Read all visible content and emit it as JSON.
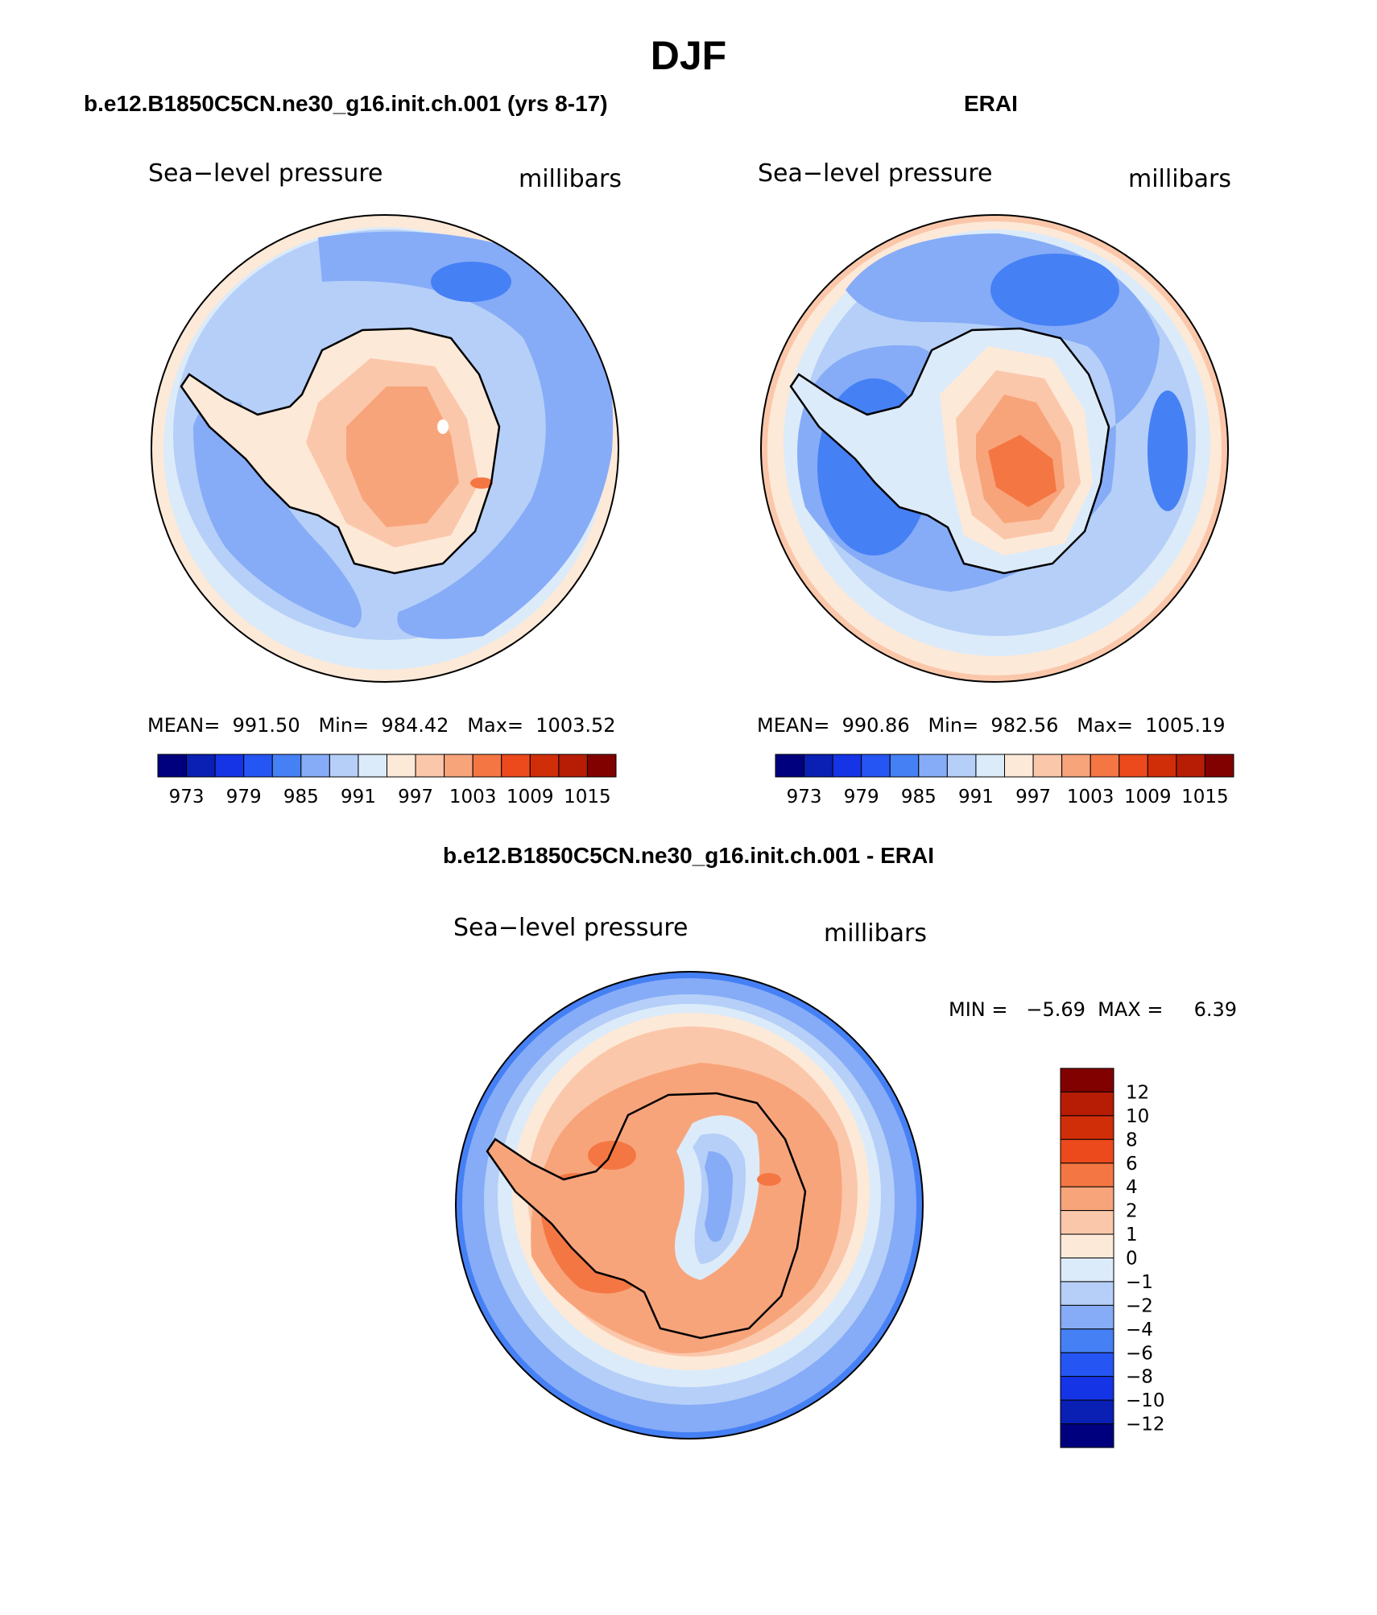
{
  "title": "DJF",
  "panels": [
    {
      "id": "model",
      "header": "b.e12.B1850C5CN.ne30_g16.init.ch.001 (yrs 8-17)",
      "variable": "Sea−level pressure",
      "units": "millibars",
      "stats": "MEAN=  991.50   Min=  984.42   Max=  1003.52"
    },
    {
      "id": "obs",
      "header": "ERAI",
      "variable": "Sea−level pressure",
      "units": "millibars",
      "stats": "MEAN=  990.86   Min=  982.56   Max=  1005.19"
    },
    {
      "id": "diff",
      "header": "b.e12.B1850C5CN.ne30_g16.init.ch.001 - ERAI",
      "variable": "Sea−level pressure",
      "units": "millibars",
      "stats": "MIN =   −5.69  MAX =     6.39"
    }
  ],
  "colorbar_main": {
    "colors": [
      "#00007e",
      "#0a1fb4",
      "#1434e6",
      "#2556f4",
      "#4680f5",
      "#86acf7",
      "#b5cff8",
      "#dcebf9",
      "#fde9d8",
      "#fbc7aa",
      "#f8a47b",
      "#f47743",
      "#ec4a1c",
      "#d02e08",
      "#b71c04",
      "#810000"
    ],
    "labels": [
      "973",
      "979",
      "985",
      "991",
      "997",
      "1003",
      "1009",
      "1015"
    ]
  },
  "colorbar_diff": {
    "colors": [
      "#00007e",
      "#0a1fb4",
      "#1434e6",
      "#2556f4",
      "#4680f5",
      "#86acf7",
      "#b5cff8",
      "#dcebf9",
      "#fde9d8",
      "#fbc7aa",
      "#f8a47b",
      "#f47743",
      "#ec4a1c",
      "#d02e08",
      "#b71c04",
      "#810000"
    ],
    "labels": [
      "12",
      "10",
      "8",
      "6",
      "4",
      "2",
      "1",
      "0",
      "−1",
      "−2",
      "−4",
      "−6",
      "−8",
      "−10",
      "−12"
    ]
  },
  "map_colors": {
    "ocean_high": "#fde9d8",
    "ocean_mid": "#dcebf9",
    "ocean_low": "#b5cff8",
    "ocean_lower": "#86acf7",
    "ocean_lowest": "#4680f5",
    "land_1": "#fde9d8",
    "land_2": "#fbc7aa",
    "land_3": "#f8a47b",
    "land_4": "#f47743",
    "coast": "#000000"
  }
}
